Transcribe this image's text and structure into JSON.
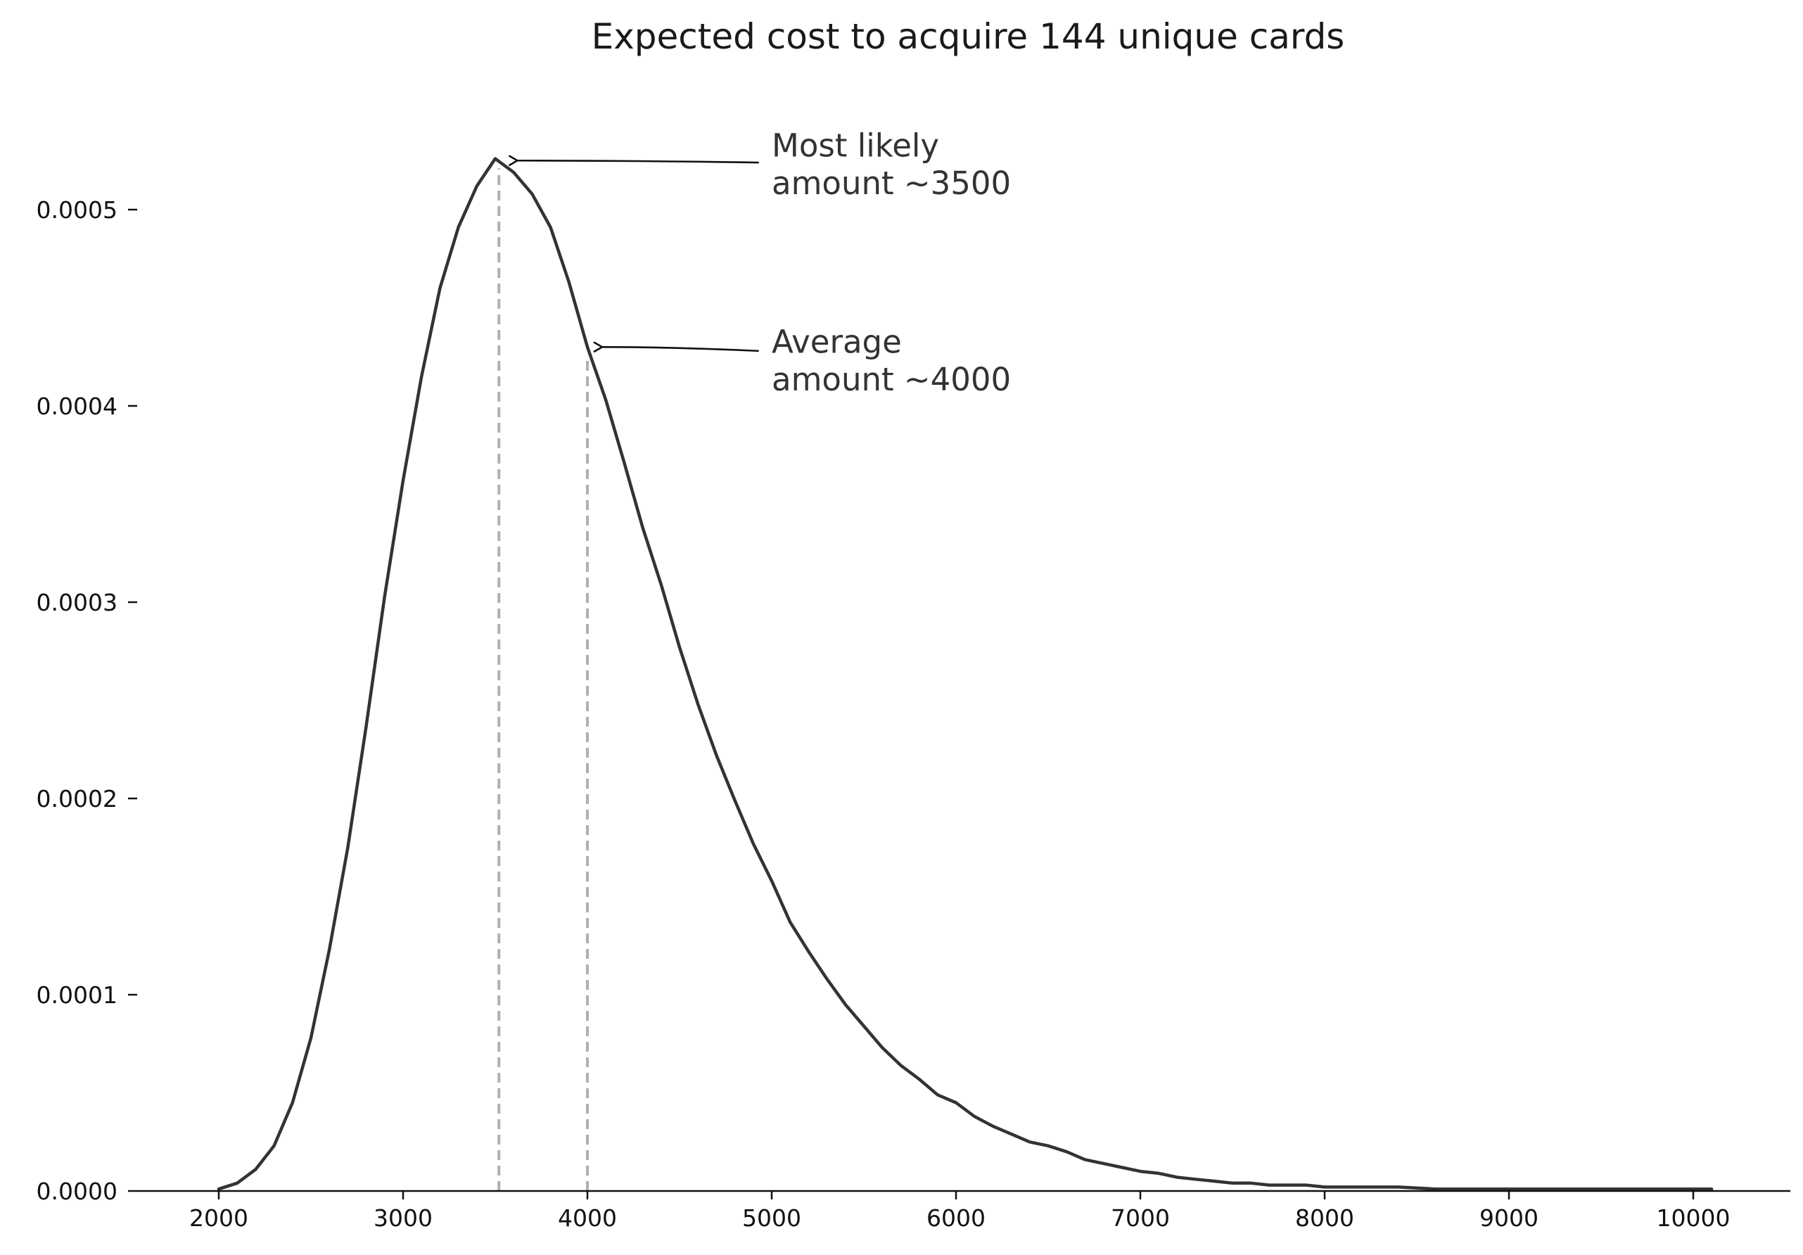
{
  "chart_data": {
    "type": "line",
    "title": "Expected cost to acquire 144 unique cards",
    "xlabel": "",
    "ylabel": "",
    "xlim": [
      1600,
      10500
    ],
    "ylim": [
      0,
      0.00055
    ],
    "grid": false,
    "legend": "none",
    "x_ticks": [
      2000,
      3000,
      4000,
      5000,
      6000,
      7000,
      8000,
      9000,
      10000
    ],
    "x_tick_labels": [
      "2000",
      "3000",
      "4000",
      "5000",
      "6000",
      "7000",
      "8000",
      "9000",
      "10000"
    ],
    "y_ticks": [
      0,
      0.0001,
      0.0002,
      0.0003,
      0.0004,
      0.0005
    ],
    "y_tick_labels": [
      "0.0000",
      "0.0001",
      "0.0002",
      "0.0003",
      "0.0004",
      "0.0005"
    ],
    "line_color": "#333333",
    "reference_color": "#b0b0b0",
    "series": [
      {
        "x": [
          2000,
          2100,
          2200,
          2300,
          2400,
          2500,
          2600,
          2700,
          2800,
          2900,
          3000,
          3100,
          3200,
          3300,
          3400,
          3500,
          3600,
          3700,
          3800,
          3900,
          4000,
          4100,
          4200,
          4300,
          4400,
          4500,
          4600,
          4700,
          4800,
          4900,
          5000,
          5100,
          5200,
          5300,
          5400,
          5500,
          5600,
          5700,
          5800,
          5900,
          6000,
          6100,
          6200,
          6300,
          6400,
          6500,
          6600,
          6700,
          6800,
          6900,
          7000,
          7100,
          7200,
          7300,
          7400,
          7500,
          7600,
          7700,
          7800,
          7900,
          8000,
          8200,
          8400,
          8600,
          8800,
          9000,
          9200,
          9400,
          9600,
          9800,
          10000,
          10100
        ],
        "values": [
          1e-06,
          4e-06,
          1.1e-05,
          2.3e-05,
          4.5e-05,
          7.8e-05,
          0.000123,
          0.000175,
          0.000237,
          0.000303,
          0.000362,
          0.000415,
          0.00046,
          0.000491,
          0.000512,
          0.000526,
          0.000519,
          0.000508,
          0.000491,
          0.000463,
          0.00043,
          0.000403,
          0.000371,
          0.000338,
          0.000309,
          0.000277,
          0.000248,
          0.000222,
          0.000199,
          0.000177,
          0.000158,
          0.000137,
          0.000122,
          0.000108,
          9.5e-05,
          8.4e-05,
          7.3e-05,
          6.4e-05,
          5.7e-05,
          4.9e-05,
          4.5e-05,
          3.8e-05,
          3.3e-05,
          2.9e-05,
          2.5e-05,
          2.3e-05,
          2e-05,
          1.6e-05,
          1.4e-05,
          1.2e-05,
          1e-05,
          9e-06,
          7e-06,
          6e-06,
          5e-06,
          4e-06,
          4e-06,
          3e-06,
          3e-06,
          3e-06,
          2e-06,
          2e-06,
          2e-06,
          1e-06,
          1e-06,
          1e-06,
          1e-06,
          1e-06,
          1e-06,
          1e-06,
          1e-06,
          1e-06
        ]
      }
    ],
    "reference_lines": [
      {
        "name": "mode",
        "x": 3520,
        "y_top": 0.000521
      },
      {
        "name": "mean",
        "x": 4000,
        "y_top": 0.000425
      }
    ],
    "annotations": [
      {
        "name": "mode",
        "lines": [
          "Most likely",
          "amount ~3500"
        ],
        "text_x": 5000,
        "text_y": 0.000527,
        "arrow_from": [
          4930,
          0.000524
        ],
        "arrow_to": [
          3620,
          0.000525
        ]
      },
      {
        "name": "mean",
        "lines": [
          "Average",
          "amount ~4000"
        ],
        "text_x": 5000,
        "text_y": 0.000427,
        "arrow_from": [
          4930,
          0.000428
        ],
        "arrow_to": [
          4080,
          0.00043
        ]
      }
    ]
  }
}
